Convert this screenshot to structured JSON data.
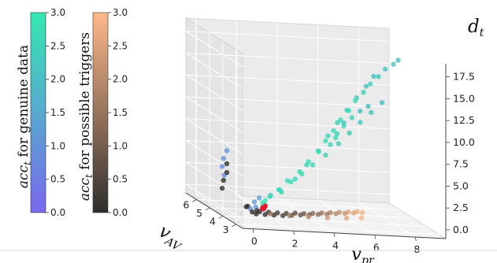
{
  "chart_data": {
    "type": "scatter",
    "projection": "3d",
    "axes": {
      "x": {
        "label": "v_pr",
        "label_main": "v",
        "label_sub": "pr",
        "ticks": [
          "0",
          "2",
          "4",
          "6",
          "8"
        ],
        "range": [
          -0.5,
          9.5
        ]
      },
      "y": {
        "label": "v_AV",
        "label_main": "v",
        "label_sub": "AV",
        "ticks": [
          "3",
          "4",
          "5",
          "6"
        ],
        "range": [
          2.5,
          6.8
        ]
      },
      "z": {
        "label": "d_t",
        "label_main": "d",
        "label_sub": "t",
        "ticks": [
          "0.0",
          "2.5",
          "5.0",
          "7.5",
          "10.0",
          "12.5",
          "15.0",
          "17.5"
        ],
        "range": [
          -1,
          19
        ]
      }
    },
    "grid": true,
    "colorbars": [
      {
        "name": "genuine",
        "label_main": "acc",
        "label_sub": "t",
        "label_rest": " for genuine data",
        "ticks": [
          "0.0",
          "0.5",
          "1.0",
          "1.5",
          "2.0",
          "2.5",
          "3.0"
        ],
        "range": [
          0,
          3
        ],
        "colors": [
          "#7b68ee",
          "#33e8b0"
        ]
      },
      {
        "name": "triggers",
        "label_main": "acc",
        "label_sub": "t",
        "label_rest": " for possible triggers",
        "ticks": [
          "0.0",
          "0.5",
          "1.0",
          "1.5",
          "2.0",
          "2.5",
          "3.0"
        ],
        "range": [
          0,
          3
        ],
        "colors": [
          "#2e2e2e",
          "#ffb98a"
        ]
      }
    ],
    "series": [
      {
        "name": "genuine data",
        "colorbar": "genuine",
        "points": [
          [
            1.2,
            3.0,
            2.5,
            2.4
          ],
          [
            1.6,
            3.0,
            3.2,
            2.5
          ],
          [
            2.1,
            3.1,
            4.2,
            2.6
          ],
          [
            2.7,
            3.1,
            5.3,
            2.6
          ],
          [
            3.2,
            3.2,
            6.4,
            2.7
          ],
          [
            3.7,
            3.2,
            7.6,
            2.7
          ],
          [
            4.1,
            3.3,
            8.8,
            2.8
          ],
          [
            4.5,
            3.3,
            10.0,
            2.8
          ],
          [
            4.9,
            3.4,
            11.2,
            2.7
          ],
          [
            5.3,
            3.4,
            12.3,
            2.7
          ],
          [
            5.7,
            3.5,
            13.4,
            2.6
          ],
          [
            6.1,
            3.5,
            14.4,
            2.5
          ],
          [
            6.5,
            3.6,
            15.3,
            2.4
          ],
          [
            6.9,
            3.6,
            16.2,
            2.3
          ],
          [
            7.3,
            3.7,
            17.0,
            2.2
          ],
          [
            7.7,
            3.7,
            17.6,
            2.1
          ],
          [
            8.0,
            3.8,
            18.0,
            2.0
          ],
          [
            2.0,
            3.4,
            2.6,
            2.6
          ],
          [
            2.8,
            3.6,
            4.0,
            2.6
          ],
          [
            3.5,
            3.8,
            5.5,
            2.7
          ],
          [
            4.2,
            4.0,
            7.0,
            2.6
          ],
          [
            4.8,
            4.2,
            8.6,
            2.5
          ],
          [
            5.4,
            4.4,
            10.0,
            2.4
          ],
          [
            6.0,
            4.6,
            11.3,
            2.3
          ],
          [
            6.6,
            4.8,
            12.6,
            2.2
          ],
          [
            7.2,
            5.0,
            13.8,
            2.1
          ],
          [
            7.7,
            5.2,
            14.8,
            2.0
          ],
          [
            1.3,
            3.2,
            2.2,
            2.9
          ],
          [
            1.0,
            3.1,
            1.8,
            2.9
          ],
          [
            0.8,
            3.0,
            1.6,
            2.9
          ],
          [
            1.8,
            3.2,
            3.0,
            2.8
          ],
          [
            2.4,
            3.3,
            3.9,
            2.8
          ],
          [
            3.0,
            3.4,
            4.8,
            2.7
          ],
          [
            3.6,
            3.5,
            5.8,
            2.6
          ],
          [
            4.3,
            3.6,
            6.9,
            2.5
          ],
          [
            5.0,
            3.7,
            8.2,
            2.4
          ],
          [
            5.6,
            3.8,
            9.4,
            2.3
          ],
          [
            6.2,
            3.9,
            10.6,
            2.2
          ],
          [
            6.8,
            4.0,
            11.7,
            2.1
          ],
          [
            7.4,
            4.1,
            12.8,
            2.0
          ],
          [
            4.6,
            3.3,
            9.2,
            2.7
          ],
          [
            5.0,
            3.3,
            10.6,
            2.6
          ],
          [
            5.4,
            3.3,
            11.6,
            2.4
          ],
          [
            5.8,
            3.3,
            12.4,
            2.2
          ],
          [
            6.2,
            3.3,
            13.0,
            2.0
          ],
          [
            4.4,
            3.4,
            8.3,
            2.6
          ],
          [
            4.8,
            3.5,
            9.5,
            2.5
          ],
          [
            5.2,
            3.6,
            10.7,
            2.3
          ],
          [
            1.0,
            3.2,
            1.0,
            1.4
          ],
          [
            0.6,
            3.2,
            0.9,
            1.0
          ],
          [
            0.4,
            3.3,
            0.6,
            0.9
          ],
          [
            -0.3,
            4.0,
            6.5,
            1.0
          ],
          [
            -0.4,
            4.1,
            5.5,
            1.1
          ],
          [
            -0.4,
            4.2,
            4.5,
            0.9
          ],
          [
            -0.3,
            4.2,
            3.5,
            1.0
          ],
          [
            0.6,
            3.3,
            1.4,
            1.2
          ],
          [
            0.9,
            3.4,
            1.8,
            1.3
          ]
        ]
      },
      {
        "name": "possible triggers",
        "colorbar": "triggers",
        "points": [
          [
            0.5,
            3.0,
            0.3,
            0.0
          ],
          [
            1.0,
            3.1,
            0.2,
            0.1
          ],
          [
            1.5,
            3.2,
            0.1,
            0.2
          ],
          [
            2.0,
            3.3,
            0.0,
            0.4
          ],
          [
            2.5,
            3.4,
            0.0,
            0.6
          ],
          [
            3.0,
            3.5,
            0.0,
            0.8
          ],
          [
            3.5,
            3.6,
            0.0,
            1.0
          ],
          [
            4.0,
            3.7,
            0.0,
            1.3
          ],
          [
            4.5,
            3.8,
            0.0,
            1.6
          ],
          [
            5.0,
            3.9,
            0.0,
            1.9
          ],
          [
            5.5,
            4.0,
            0.0,
            2.2
          ],
          [
            6.0,
            4.1,
            0.0,
            2.5
          ],
          [
            6.5,
            4.2,
            0.0,
            2.8
          ],
          [
            0.8,
            3.2,
            0.4,
            0.1
          ],
          [
            1.3,
            3.3,
            0.3,
            0.2
          ],
          [
            1.8,
            3.4,
            0.2,
            0.3
          ],
          [
            2.3,
            3.5,
            0.1,
            0.5
          ],
          [
            2.8,
            3.6,
            0.1,
            0.7
          ],
          [
            3.3,
            3.7,
            0.0,
            0.9
          ],
          [
            3.8,
            3.8,
            0.0,
            1.2
          ],
          [
            4.3,
            3.9,
            0.0,
            1.5
          ],
          [
            4.8,
            4.0,
            0.0,
            1.8
          ],
          [
            5.3,
            4.1,
            0.0,
            2.1
          ],
          [
            5.8,
            4.2,
            0.0,
            2.4
          ],
          [
            6.3,
            4.3,
            0.0,
            2.7
          ],
          [
            0.3,
            3.0,
            0.5,
            0.0
          ],
          [
            0.6,
            3.1,
            0.6,
            0.1
          ],
          [
            1.2,
            3.0,
            0.4,
            1.5
          ],
          [
            2.2,
            3.1,
            0.2,
            1.8
          ],
          [
            3.2,
            3.2,
            0.1,
            2.0
          ],
          [
            4.2,
            3.3,
            0.0,
            2.3
          ],
          [
            5.2,
            3.4,
            0.0,
            2.6
          ],
          [
            6.0,
            3.5,
            0.0,
            2.9
          ],
          [
            -0.3,
            4.0,
            4.0,
            0.0
          ],
          [
            -0.4,
            4.1,
            3.0,
            0.0
          ],
          [
            -0.4,
            4.2,
            2.0,
            0.1
          ],
          [
            -0.3,
            4.0,
            5.0,
            0.0
          ],
          [
            0.2,
            3.3,
            0.8,
            0.0
          ],
          [
            0.4,
            3.5,
            0.7,
            0.1
          ]
        ]
      },
      {
        "name": "highlight",
        "color": "#e0182c",
        "points": [
          [
            0.9,
            3.1,
            0.9
          ],
          [
            1.0,
            3.15,
            1.1
          ]
        ]
      }
    ]
  }
}
